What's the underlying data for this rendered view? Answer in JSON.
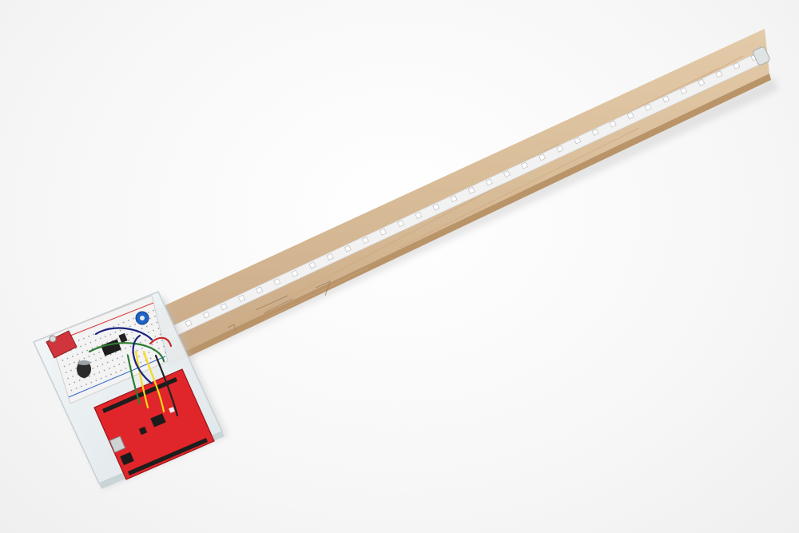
{
  "scene": {
    "background_color": "#f7f7f7",
    "objects": [
      {
        "name": "wooden-board",
        "color": "#d8bc98"
      },
      {
        "name": "led-strip",
        "color": "#eeeeee"
      },
      {
        "name": "acrylic-base-plate",
        "color": "#e8eef0"
      },
      {
        "name": "breadboard",
        "color": "#f1f1f1"
      },
      {
        "name": "microcontroller-board",
        "color": "#e0262a"
      },
      {
        "name": "jumper-wires",
        "colors": [
          "#1a237e",
          "#2e7d32",
          "#f9d71c",
          "#222222",
          "#c62828"
        ]
      },
      {
        "name": "potentiometer",
        "color": "#1e64c8"
      },
      {
        "name": "capacitor",
        "color": "#2b2b2b"
      },
      {
        "name": "sensor-module",
        "color": "#d0343c"
      }
    ]
  }
}
